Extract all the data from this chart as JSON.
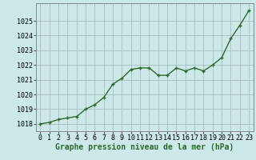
{
  "x": [
    0,
    1,
    2,
    3,
    4,
    5,
    6,
    7,
    8,
    9,
    10,
    11,
    12,
    13,
    14,
    15,
    16,
    17,
    18,
    19,
    20,
    21,
    22,
    23
  ],
  "y": [
    1018.0,
    1018.1,
    1018.3,
    1018.4,
    1018.5,
    1019.0,
    1019.3,
    1019.8,
    1020.7,
    1021.1,
    1021.7,
    1021.8,
    1021.8,
    1021.3,
    1021.3,
    1021.8,
    1021.6,
    1021.8,
    1021.6,
    1022.0,
    1022.5,
    1023.8,
    1024.7,
    1025.7
  ],
  "line_color": "#2d6a2d",
  "marker_color": "#2d6a2d",
  "bg_color": "#cce8e8",
  "grid_color": "#aabfbf",
  "xlabel": "Graphe pression niveau de la mer (hPa)",
  "xlabel_color": "#2d6a2d",
  "xlabel_fontsize": 7.0,
  "tick_fontsize": 6.0,
  "ylim": [
    1017.5,
    1026.2
  ],
  "yticks": [
    1018,
    1019,
    1020,
    1021,
    1022,
    1023,
    1024,
    1025
  ],
  "xticks": [
    0,
    1,
    2,
    3,
    4,
    5,
    6,
    7,
    8,
    9,
    10,
    11,
    12,
    13,
    14,
    15,
    16,
    17,
    18,
    19,
    20,
    21,
    22,
    23
  ],
  "line_width": 1.0,
  "marker_size": 3.5
}
